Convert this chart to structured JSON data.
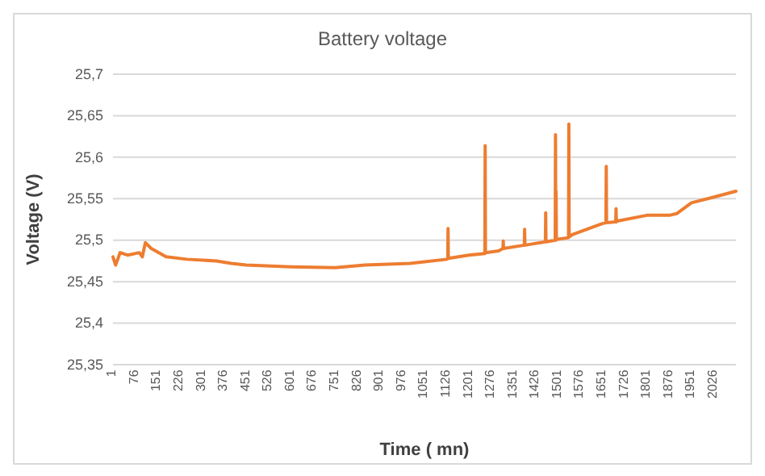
{
  "chart_data": {
    "type": "line",
    "title": "Battery voltage",
    "xlabel": "Time ( mn)",
    "ylabel": "Voltage (V)",
    "x": [
      1,
      10,
      25,
      50,
      90,
      100,
      110,
      130,
      180,
      250,
      350,
      400,
      450,
      600,
      750,
      850,
      1000,
      1050,
      1126,
      1129,
      1130,
      1131,
      1200,
      1254,
      1255,
      1256,
      1300,
      1315,
      1316,
      1317,
      1387,
      1388,
      1389,
      1458,
      1459,
      1460,
      1491,
      1492,
      1493,
      1494,
      1495,
      1536,
      1537,
      1538,
      1550,
      1650,
      1662,
      1663,
      1664,
      1695,
      1696,
      1697,
      1700,
      1800,
      1876,
      1900,
      1950,
      2026,
      2100
    ],
    "series": [
      {
        "color": "#ed7d31",
        "values": [
          25.48,
          25.47,
          25.485,
          25.482,
          25.485,
          25.48,
          25.497,
          25.49,
          25.48,
          25.477,
          25.475,
          25.472,
          25.47,
          25.468,
          25.467,
          25.47,
          25.472,
          25.474,
          25.477,
          25.478,
          25.514,
          25.478,
          25.482,
          25.484,
          25.614,
          25.485,
          25.487,
          25.49,
          25.499,
          25.49,
          25.494,
          25.513,
          25.494,
          25.498,
          25.533,
          25.498,
          25.5,
          25.627,
          25.5,
          25.559,
          25.501,
          25.503,
          25.64,
          25.504,
          25.507,
          25.52,
          25.521,
          25.589,
          25.521,
          25.522,
          25.538,
          25.522,
          25.523,
          25.53,
          25.53,
          25.532,
          25.545,
          25.552,
          25.559
        ]
      }
    ],
    "xlim": [
      1,
      2100
    ],
    "xticks": [
      1,
      76,
      151,
      226,
      301,
      376,
      451,
      526,
      601,
      676,
      751,
      826,
      901,
      976,
      1051,
      1126,
      1201,
      1276,
      1351,
      1426,
      1501,
      1576,
      1651,
      1726,
      1801,
      1876,
      1951,
      2026
    ],
    "ylim": [
      25.35,
      25.7
    ],
    "yticks": [
      {
        "value": 25.35,
        "label": "25,35"
      },
      {
        "value": 25.4,
        "label": "25,4"
      },
      {
        "value": 25.45,
        "label": "25,45"
      },
      {
        "value": 25.5,
        "label": "25,5"
      },
      {
        "value": 25.55,
        "label": "25,55"
      },
      {
        "value": 25.6,
        "label": "25,6"
      },
      {
        "value": 25.65,
        "label": "25,65"
      },
      {
        "value": 25.7,
        "label": "25,7"
      }
    ],
    "grid": "y",
    "marker": "none",
    "line_style": "solid"
  }
}
